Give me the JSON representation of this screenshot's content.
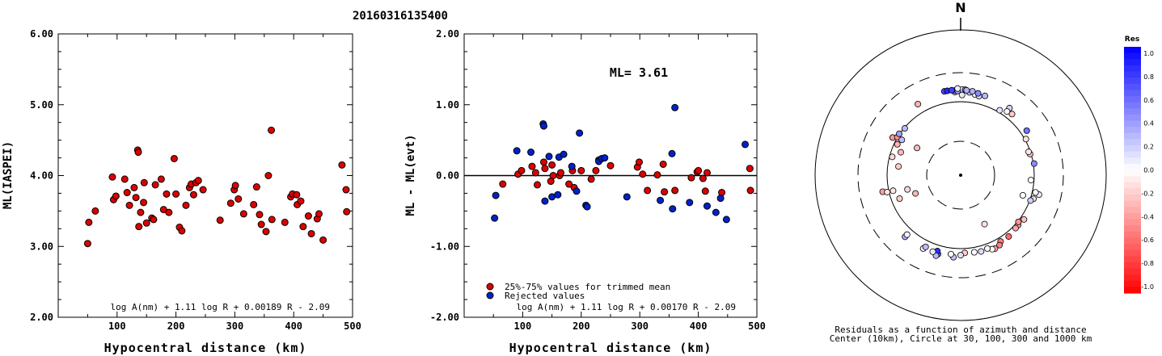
{
  "title": "20160316135400",
  "chart_data": [
    {
      "type": "scatter",
      "name": "left",
      "ylabel": "ML(IASPEI)",
      "xlabel": "Hypocentral distance (km)",
      "xlim": [
        0,
        500
      ],
      "ylim": [
        2.0,
        6.0
      ],
      "xticks": [
        100,
        200,
        300,
        400,
        500
      ],
      "xtick_labels": [
        "100",
        "200",
        "300",
        "400",
        "500"
      ],
      "yticks": [
        2.0,
        3.0,
        4.0,
        5.0,
        6.0
      ],
      "ytick_labels": [
        "2.00",
        "3.00",
        "4.00",
        "5.00",
        "6.00"
      ],
      "formula": "log A(nm) + 1.11 log R + 0.00189 R - 2.09",
      "marker_color": "#dd0000",
      "points": [
        [
          50,
          3.04
        ],
        [
          52,
          3.34
        ],
        [
          63,
          3.5
        ],
        [
          92,
          3.98
        ],
        [
          94,
          3.66
        ],
        [
          98,
          3.71
        ],
        [
          113,
          3.95
        ],
        [
          117,
          3.76
        ],
        [
          121,
          3.58
        ],
        [
          129,
          3.83
        ],
        [
          132,
          3.69
        ],
        [
          135,
          4.36
        ],
        [
          136,
          4.33
        ],
        [
          137,
          3.28
        ],
        [
          140,
          3.48
        ],
        [
          145,
          3.62
        ],
        [
          146,
          3.9
        ],
        [
          150,
          3.33
        ],
        [
          159,
          3.4
        ],
        [
          162,
          3.38
        ],
        [
          165,
          3.87
        ],
        [
          175,
          3.95
        ],
        [
          179,
          3.52
        ],
        [
          184,
          3.74
        ],
        [
          188,
          3.48
        ],
        [
          197,
          4.24
        ],
        [
          200,
          3.74
        ],
        [
          206,
          3.27
        ],
        [
          210,
          3.22
        ],
        [
          217,
          3.58
        ],
        [
          223,
          3.83
        ],
        [
          226,
          3.88
        ],
        [
          230,
          3.73
        ],
        [
          234,
          3.9
        ],
        [
          238,
          3.93
        ],
        [
          246,
          3.8
        ],
        [
          275,
          3.37
        ],
        [
          293,
          3.61
        ],
        [
          299,
          3.8
        ],
        [
          301,
          3.86
        ],
        [
          306,
          3.67
        ],
        [
          315,
          3.46
        ],
        [
          332,
          3.59
        ],
        [
          337,
          3.84
        ],
        [
          342,
          3.45
        ],
        [
          345,
          3.31
        ],
        [
          353,
          3.21
        ],
        [
          357,
          4.0
        ],
        [
          362,
          4.64
        ],
        [
          363,
          3.38
        ],
        [
          385,
          3.34
        ],
        [
          395,
          3.7
        ],
        [
          398,
          3.74
        ],
        [
          405,
          3.73
        ],
        [
          406,
          3.59
        ],
        [
          412,
          3.64
        ],
        [
          416,
          3.28
        ],
        [
          425,
          3.43
        ],
        [
          430,
          3.18
        ],
        [
          440,
          3.39
        ],
        [
          443,
          3.46
        ],
        [
          450,
          3.09
        ],
        [
          482,
          4.15
        ],
        [
          489,
          3.8
        ],
        [
          490,
          3.49
        ]
      ]
    },
    {
      "type": "scatter",
      "name": "middle",
      "ylabel": "ML - ML(evt)",
      "xlabel": "Hypocentral distance (km)",
      "xlim": [
        0,
        500
      ],
      "ylim": [
        -2.0,
        2.0
      ],
      "xticks": [
        100,
        200,
        300,
        400,
        500
      ],
      "xtick_labels": [
        "100",
        "200",
        "300",
        "400",
        "500"
      ],
      "yticks": [
        -2.0,
        -1.0,
        0.0,
        1.0,
        2.0
      ],
      "ytick_labels": [
        "-2.00",
        "-1.00",
        "0.00",
        "1.00",
        "2.00"
      ],
      "ml_label": "ML= 3.61",
      "formula": "log A(nm) + 1.11 log R + 0.00170 R - 2.09",
      "legend": [
        {
          "label": "25%-75% values for trimmed mean",
          "color": "#dd0000"
        },
        {
          "label": "Rejected values",
          "color": "#0022cc"
        }
      ],
      "series": [
        {
          "color": "#dd0000",
          "points": [
            [
              66,
              -0.12
            ],
            [
              92,
              0.02
            ],
            [
              98,
              0.07
            ],
            [
              116,
              0.13
            ],
            [
              122,
              0.04
            ],
            [
              125,
              -0.13
            ],
            [
              136,
              0.19
            ],
            [
              138,
              0.1
            ],
            [
              148,
              -0.08
            ],
            [
              150,
              0.15
            ],
            [
              152,
              0.0
            ],
            [
              163,
              0.0
            ],
            [
              165,
              0.04
            ],
            [
              179,
              -0.12
            ],
            [
              185,
              0.07
            ],
            [
              188,
              -0.17
            ],
            [
              200,
              0.07
            ],
            [
              217,
              -0.05
            ],
            [
              225,
              0.07
            ],
            [
              230,
              0.22
            ],
            [
              250,
              0.14
            ],
            [
              296,
              0.12
            ],
            [
              299,
              0.19
            ],
            [
              305,
              0.02
            ],
            [
              313,
              -0.21
            ],
            [
              330,
              0.01
            ],
            [
              340,
              0.16
            ],
            [
              342,
              -0.23
            ],
            [
              360,
              -0.21
            ],
            [
              388,
              -0.03
            ],
            [
              398,
              0.05
            ],
            [
              400,
              0.07
            ],
            [
              408,
              -0.04
            ],
            [
              412,
              -0.22
            ],
            [
              415,
              0.04
            ],
            [
              440,
              -0.24
            ],
            [
              488,
              0.1
            ],
            [
              489,
              -0.21
            ]
          ]
        },
        {
          "color": "#0022cc",
          "points": [
            [
              52,
              -0.6
            ],
            [
              54,
              -0.28
            ],
            [
              90,
              0.35
            ],
            [
              114,
              0.33
            ],
            [
              135,
              0.73
            ],
            [
              136,
              0.7
            ],
            [
              138,
              -0.36
            ],
            [
              145,
              0.27
            ],
            [
              150,
              -0.3
            ],
            [
              160,
              -0.27
            ],
            [
              162,
              0.26
            ],
            [
              170,
              0.3
            ],
            [
              184,
              0.13
            ],
            [
              192,
              -0.22
            ],
            [
              197,
              0.6
            ],
            [
              208,
              -0.42
            ],
            [
              210,
              -0.44
            ],
            [
              230,
              0.2
            ],
            [
              235,
              0.24
            ],
            [
              240,
              0.25
            ],
            [
              278,
              -0.3
            ],
            [
              335,
              -0.35
            ],
            [
              355,
              0.31
            ],
            [
              356,
              -0.47
            ],
            [
              360,
              0.96
            ],
            [
              385,
              -0.38
            ],
            [
              415,
              -0.43
            ],
            [
              430,
              -0.52
            ],
            [
              438,
              -0.32
            ],
            [
              448,
              -0.62
            ],
            [
              480,
              0.44
            ]
          ]
        }
      ]
    },
    {
      "type": "scatter",
      "name": "polar residuals",
      "north_label": "N",
      "caption_line1": "Residuals as a function of azimuth and distance",
      "caption_line2": "Center (10km), Circle at 30, 100, 300 and 1000 km",
      "rings_km": [
        30,
        100,
        300,
        1000
      ],
      "colorbar": {
        "title": "Res",
        "ticks": [
          "1.0",
          "0.8",
          "0.6",
          "0.4",
          "0.2",
          "0.0",
          "-0.2",
          "-0.4",
          "-0.6",
          "-0.8",
          "-1.0"
        ],
        "positive_color": "#0000ee",
        "negative_color": "#ee0000"
      },
      "points": [
        [
          -31,
          143,
          -0.3
        ],
        [
          -4,
          145,
          0.16
        ],
        [
          1,
          147,
          0.16
        ],
        [
          6,
          145,
          0.23
        ],
        [
          10,
          138,
          0.01
        ],
        [
          13,
          134,
          0.13
        ],
        [
          17,
          143,
          0.28
        ],
        [
          36,
          143,
          0.18
        ],
        [
          31,
          109,
          0.11
        ],
        [
          36,
          122,
          -0.04
        ],
        [
          1,
          159,
          0.1
        ],
        [
          3,
          158,
          0.5
        ],
        [
          4,
          155,
          0.3
        ],
        [
          8,
          153,
          0.31
        ],
        [
          12,
          147,
          0.46
        ],
        [
          -4,
          154,
          0.62
        ],
        [
          -4,
          153,
          0.5
        ],
        [
          -2,
          150,
          0.38
        ],
        [
          1,
          129,
          0.1
        ],
        [
          -11,
          157,
          0.72
        ],
        [
          -9,
          157,
          0.84
        ],
        [
          -6,
          157,
          0.75
        ],
        [
          -2,
          165,
          0.06
        ],
        [
          40,
          127,
          -0.22
        ],
        [
          56,
          126,
          0.55
        ],
        [
          61,
          104,
          -0.13
        ],
        [
          73,
          97,
          -0.24
        ],
        [
          71,
          95,
          -0.1
        ],
        [
          81,
          103,
          0.46
        ],
        [
          104,
          131,
          0.08
        ],
        [
          108,
          112,
          -0.15
        ],
        [
          103,
          113,
          0.0
        ],
        [
          94,
          91,
          0.0
        ],
        [
          108,
          78,
          0.0
        ],
        [
          110,
          103,
          0.2
        ],
        [
          125,
          115,
          -0.25
        ],
        [
          131,
          110,
          -0.3
        ],
        [
          129,
          103,
          -0.42
        ],
        [
          134,
          111,
          -0.35
        ],
        [
          142,
          118,
          -0.58
        ],
        [
          149,
          116,
          -0.5
        ],
        [
          151,
          128,
          -0.5
        ],
        [
          155,
          133,
          -0.35
        ],
        [
          157,
          130,
          0.0
        ],
        [
          160,
          119,
          -0.04
        ],
        [
          165,
          123,
          0.14
        ],
        [
          170,
          120,
          0.0
        ],
        [
          177,
          118,
          -0.2
        ],
        [
          180,
          128,
          0.13
        ],
        [
          185,
          140,
          0.25
        ],
        [
          187,
          126,
          0.02
        ],
        [
          196,
          139,
          0.62
        ],
        [
          197,
          125,
          0.81
        ],
        [
          197,
          150,
          0.28
        ],
        [
          200,
          135,
          0.08
        ],
        [
          207,
          140,
          -0.05
        ],
        [
          206,
          127,
          0.26
        ],
        [
          222,
          143,
          0.31
        ],
        [
          222,
          128,
          0.04
        ],
        [
          154,
          56,
          -0.12
        ],
        [
          249,
          78,
          -0.2
        ],
        [
          248,
          47,
          -0.3
        ],
        [
          258,
          126,
          -0.35
        ],
        [
          257,
          107,
          -0.1
        ],
        [
          257,
          88,
          -0.1
        ],
        [
          278,
          72,
          -0.2
        ],
        [
          285,
          92,
          -0.15
        ],
        [
          291,
          75,
          -0.28
        ],
        [
          296,
          91,
          -0.3
        ],
        [
          299,
          117,
          -0.4
        ],
        [
          301,
          101,
          -0.44
        ],
        [
          304,
          102,
          0.38
        ],
        [
          310,
          98,
          0.27
        ],
        [
          301,
          86,
          0.26
        ],
        [
          255,
          57,
          -0.16
        ],
        [
          302,
          51,
          -0.25
        ]
      ]
    }
  ]
}
